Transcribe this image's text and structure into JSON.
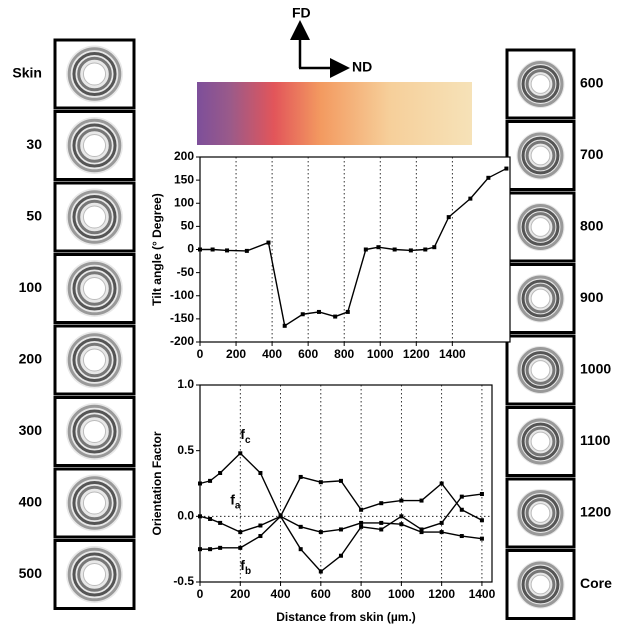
{
  "directions": {
    "up": "FD",
    "right": "ND"
  },
  "left_panels": [
    "Skin",
    "30",
    "50",
    "100",
    "200",
    "300",
    "400",
    "500"
  ],
  "right_panels": [
    "600",
    "700",
    "800",
    "900",
    "1000",
    "1100",
    "1200",
    "Core"
  ],
  "chart_data": [
    {
      "type": "line",
      "ylabel": "Tilt angle (° Degree)",
      "xlim": [
        0,
        1720
      ],
      "xticks": [
        0,
        200,
        400,
        600,
        800,
        1000,
        1200,
        1400
      ],
      "ylim": [
        -200,
        200
      ],
      "yticks": [
        -200,
        -150,
        -100,
        -50,
        0,
        50,
        100,
        150,
        200
      ],
      "grid": "x-dotted",
      "series": [
        {
          "color": "#000000",
          "x": [
            0,
            70,
            150,
            260,
            380,
            470,
            570,
            660,
            750,
            820,
            920,
            990,
            1080,
            1170,
            1250,
            1300,
            1380,
            1500,
            1600,
            1700
          ],
          "values": [
            0,
            0,
            -2,
            -3,
            15,
            -165,
            -140,
            -135,
            -145,
            -135,
            0,
            5,
            0,
            -2,
            0,
            5,
            70,
            110,
            155,
            175
          ]
        }
      ]
    },
    {
      "type": "line",
      "xlabel": "Distance from skin (µm.)",
      "ylabel": "Orientation Factor",
      "xlim": [
        0,
        1450
      ],
      "xticks": [
        0,
        200,
        400,
        600,
        800,
        1000,
        1200,
        1400
      ],
      "ylim": [
        -0.5,
        1
      ],
      "yticks": [
        -0.5,
        {
          "value": 0,
          "label": "0.0"
        },
        0.5,
        {
          "value": 1,
          "label": "1.0"
        }
      ],
      "grid": "x-dotted",
      "series": [
        {
          "color": "#000000",
          "x": [
            0,
            50,
            100,
            200,
            300,
            400,
            500,
            600,
            700,
            800,
            900,
            1000,
            1100,
            1200,
            1300,
            1400
          ],
          "values": [
            0.25,
            0.27,
            0.33,
            0.48,
            0.33,
            0.0,
            -0.25,
            -0.42,
            -0.3,
            -0.08,
            -0.1,
            0.0,
            -0.1,
            -0.05,
            0.15,
            0.17
          ]
        },
        {
          "color": "#000000",
          "x": [
            0,
            50,
            100,
            200,
            300,
            400,
            500,
            600,
            700,
            800,
            900,
            1000,
            1100,
            1200,
            1300,
            1400
          ],
          "values": [
            0.0,
            -0.02,
            -0.05,
            -0.12,
            -0.07,
            0.0,
            0.3,
            0.26,
            0.27,
            0.05,
            0.1,
            0.12,
            0.12,
            0.25,
            0.05,
            -0.03
          ]
        },
        {
          "color": "#000000",
          "x": [
            0,
            50,
            100,
            200,
            300,
            400,
            500,
            600,
            700,
            800,
            900,
            1000,
            1100,
            1200,
            1300,
            1400
          ],
          "values": [
            -0.25,
            -0.25,
            -0.24,
            -0.24,
            -0.15,
            0.0,
            -0.08,
            -0.12,
            -0.1,
            -0.05,
            -0.05,
            -0.06,
            -0.12,
            -0.12,
            -0.15,
            -0.17
          ]
        }
      ],
      "annotations": [
        {
          "text": "f",
          "sub": "c",
          "x": 200,
          "y": 0.62
        },
        {
          "text": "f",
          "sub": "a",
          "x": 150,
          "y": 0.12
        },
        {
          "text": "f",
          "sub": "b",
          "x": 200,
          "y": -0.38
        }
      ]
    }
  ]
}
